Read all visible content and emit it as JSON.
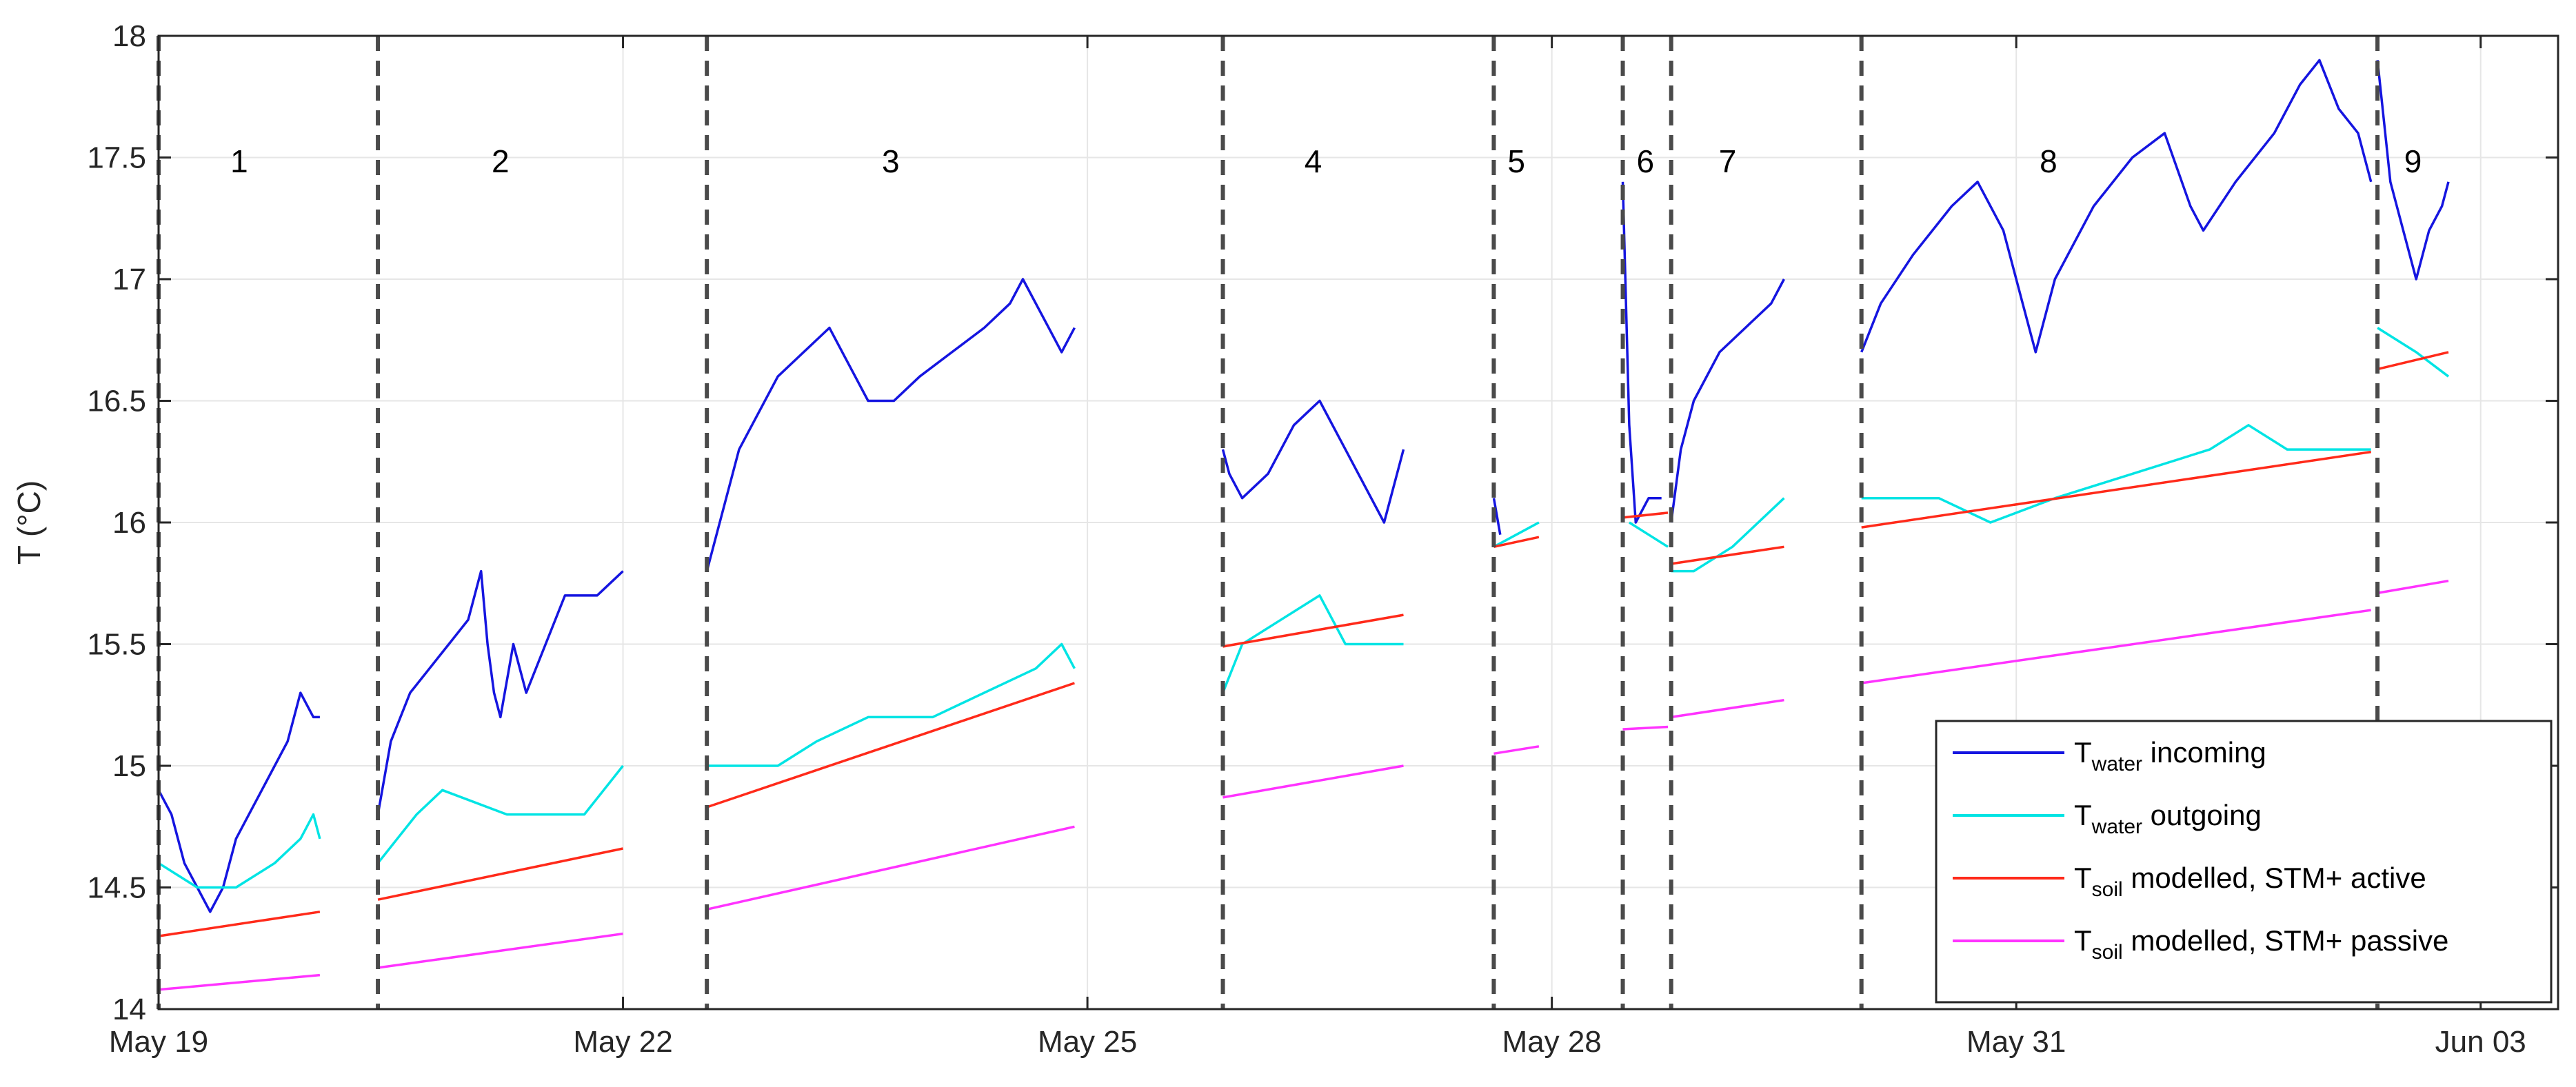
{
  "chart_data": {
    "type": "line",
    "xlabel": "",
    "ylabel": "T (°C)",
    "ylim": [
      14,
      18
    ],
    "xlim": [
      "2021-05-19T00:00",
      "2021-06-03T12:00"
    ],
    "x_ticks": [
      {
        "at": "2021-05-19",
        "label": "May 19"
      },
      {
        "at": "2021-05-22",
        "label": "May 22"
      },
      {
        "at": "2021-05-25",
        "label": "May 25"
      },
      {
        "at": "2021-05-28",
        "label": "May 28"
      },
      {
        "at": "2021-05-31",
        "label": "May 31"
      },
      {
        "at": "2021-06-03",
        "label": "Jun 03"
      }
    ],
    "y_ticks": [
      "14",
      "14.5",
      "15",
      "15.5",
      "16",
      "16.5",
      "17",
      "17.5",
      "18"
    ],
    "grid": true,
    "legend_position": "bottom-right",
    "colors": {
      "incoming": "#1515e0",
      "outgoing": "#00e4e4",
      "active": "#ff2a1a",
      "passive": "#ff33ff",
      "divider": "#4a4a4a"
    },
    "periods": [
      {
        "label": "1",
        "start": "2021-05-19T00:00",
        "end": "2021-05-20T01:00"
      },
      {
        "label": "2",
        "start": "2021-05-20T10:00",
        "end": "2021-05-22T00:00"
      },
      {
        "label": "3",
        "start": "2021-05-22T13:00",
        "end": "2021-05-24T22:00"
      },
      {
        "label": "4",
        "start": "2021-05-25T21:00",
        "end": "2021-05-27T01:00"
      },
      {
        "label": "5",
        "start": "2021-05-27T15:00",
        "end": "2021-05-27T22:00"
      },
      {
        "label": "6",
        "start": "2021-05-28T11:00",
        "end": "2021-05-28T18:00"
      },
      {
        "label": "7",
        "start": "2021-05-28T18:30",
        "end": "2021-05-29T12:00"
      },
      {
        "label": "8",
        "start": "2021-05-30T00:00",
        "end": "2021-06-01T10:00"
      },
      {
        "label": "9",
        "start": "2021-06-02T08:00",
        "end": "2021-06-02T19:00"
      }
    ],
    "series": [
      {
        "name": "T_water incoming",
        "key": "incoming",
        "segments": [
          [
            [
              "2021-05-19T00:00",
              14.9
            ],
            [
              "2021-05-19T02:00",
              14.8
            ],
            [
              "2021-05-19T04:00",
              14.6
            ],
            [
              "2021-05-19T06:00",
              14.5
            ],
            [
              "2021-05-19T08:00",
              14.4
            ],
            [
              "2021-05-19T10:00",
              14.5
            ],
            [
              "2021-05-19T12:00",
              14.7
            ],
            [
              "2021-05-19T14:00",
              14.8
            ],
            [
              "2021-05-19T16:00",
              14.9
            ],
            [
              "2021-05-19T18:00",
              15.0
            ],
            [
              "2021-05-19T20:00",
              15.1
            ],
            [
              "2021-05-19T22:00",
              15.3
            ],
            [
              "2021-05-20T00:00",
              15.2
            ],
            [
              "2021-05-20T01:00",
              15.2
            ]
          ],
          [
            [
              "2021-05-20T10:00",
              14.8
            ],
            [
              "2021-05-20T12:00",
              15.1
            ],
            [
              "2021-05-20T15:00",
              15.3
            ],
            [
              "2021-05-20T18:00",
              15.4
            ],
            [
              "2021-05-20T21:00",
              15.5
            ],
            [
              "2021-05-21T00:00",
              15.6
            ],
            [
              "2021-05-21T02:00",
              15.8
            ],
            [
              "2021-05-21T03:00",
              15.5
            ],
            [
              "2021-05-21T04:00",
              15.3
            ],
            [
              "2021-05-21T05:00",
              15.2
            ],
            [
              "2021-05-21T07:00",
              15.5
            ],
            [
              "2021-05-21T09:00",
              15.3
            ],
            [
              "2021-05-21T12:00",
              15.5
            ],
            [
              "2021-05-21T15:00",
              15.7
            ],
            [
              "2021-05-21T20:00",
              15.7
            ],
            [
              "2021-05-22T00:00",
              15.8
            ]
          ],
          [
            [
              "2021-05-22T13:00",
              15.8
            ],
            [
              "2021-05-22T14:00",
              15.9
            ],
            [
              "2021-05-22T16:00",
              16.1
            ],
            [
              "2021-05-22T18:00",
              16.3
            ],
            [
              "2021-05-22T20:00",
              16.4
            ],
            [
              "2021-05-23T00:00",
              16.6
            ],
            [
              "2021-05-23T04:00",
              16.7
            ],
            [
              "2021-05-23T08:00",
              16.8
            ],
            [
              "2021-05-23T10:00",
              16.7
            ],
            [
              "2021-05-23T12:00",
              16.6
            ],
            [
              "2021-05-23T14:00",
              16.5
            ],
            [
              "2021-05-23T18:00",
              16.5
            ],
            [
              "2021-05-23T22:00",
              16.6
            ],
            [
              "2021-05-24T03:00",
              16.7
            ],
            [
              "2021-05-24T08:00",
              16.8
            ],
            [
              "2021-05-24T12:00",
              16.9
            ],
            [
              "2021-05-24T14:00",
              17.0
            ],
            [
              "2021-05-24T18:00",
              16.8
            ],
            [
              "2021-05-24T20:00",
              16.7
            ],
            [
              "2021-05-24T22:00",
              16.8
            ]
          ],
          [
            [
              "2021-05-25T21:00",
              16.3
            ],
            [
              "2021-05-25T22:00",
              16.2
            ],
            [
              "2021-05-26T00:00",
              16.1
            ],
            [
              "2021-05-26T04:00",
              16.2
            ],
            [
              "2021-05-26T08:00",
              16.4
            ],
            [
              "2021-05-26T12:00",
              16.5
            ],
            [
              "2021-05-26T16:00",
              16.3
            ],
            [
              "2021-05-26T20:00",
              16.1
            ],
            [
              "2021-05-26T22:00",
              16.0
            ],
            [
              "2021-05-27T01:00",
              16.3
            ]
          ],
          [
            [
              "2021-05-27T15:00",
              16.1
            ],
            [
              "2021-05-27T16:00",
              15.95
            ]
          ],
          [
            [
              "2021-05-28T11:00",
              17.4
            ],
            [
              "2021-05-28T12:00",
              16.4
            ],
            [
              "2021-05-28T13:00",
              16.0
            ],
            [
              "2021-05-28T15:00",
              16.1
            ],
            [
              "2021-05-28T17:00",
              16.1
            ]
          ],
          [
            [
              "2021-05-28T18:30",
              16.0
            ],
            [
              "2021-05-28T20:00",
              16.3
            ],
            [
              "2021-05-28T22:00",
              16.5
            ],
            [
              "2021-05-29T02:00",
              16.7
            ],
            [
              "2021-05-29T06:00",
              16.8
            ],
            [
              "2021-05-29T10:00",
              16.9
            ],
            [
              "2021-05-29T12:00",
              17.0
            ]
          ],
          [
            [
              "2021-05-30T00:00",
              16.7
            ],
            [
              "2021-05-30T03:00",
              16.9
            ],
            [
              "2021-05-30T08:00",
              17.1
            ],
            [
              "2021-05-30T14:00",
              17.3
            ],
            [
              "2021-05-30T18:00",
              17.4
            ],
            [
              "2021-05-30T22:00",
              17.2
            ],
            [
              "2021-05-31T01:00",
              16.9
            ],
            [
              "2021-05-31T03:00",
              16.7
            ],
            [
              "2021-05-31T06:00",
              17.0
            ],
            [
              "2021-05-31T12:00",
              17.3
            ],
            [
              "2021-05-31T18:00",
              17.5
            ],
            [
              "2021-05-31T23:00",
              17.6
            ],
            [
              "2021-06-01T03:00",
              17.3
            ],
            [
              "2021-06-01T05:00",
              17.2
            ],
            [
              "2021-06-01T10:00",
              17.4
            ],
            [
              "2021-06-01T16:00",
              17.6
            ],
            [
              "2021-06-01T20:00",
              17.8
            ],
            [
              "2021-06-01T23:00",
              17.9
            ],
            [
              "2021-06-02T02:00",
              17.7
            ],
            [
              "2021-06-02T05:00",
              17.6
            ],
            [
              "2021-06-02T07:00",
              17.4
            ]
          ],
          [
            [
              "2021-06-02T08:00",
              17.9
            ],
            [
              "2021-06-02T10:00",
              17.4
            ],
            [
              "2021-06-02T12:00",
              17.2
            ],
            [
              "2021-06-02T14:00",
              17.0
            ],
            [
              "2021-06-02T16:00",
              17.2
            ],
            [
              "2021-06-02T18:00",
              17.3
            ],
            [
              "2021-06-02T19:00",
              17.4
            ]
          ]
        ]
      },
      {
        "name": "T_water outgoing",
        "key": "outgoing",
        "segments": [
          [
            [
              "2021-05-19T00:00",
              14.6
            ],
            [
              "2021-05-19T06:00",
              14.5
            ],
            [
              "2021-05-19T12:00",
              14.5
            ],
            [
              "2021-05-19T18:00",
              14.6
            ],
            [
              "2021-05-19T22:00",
              14.7
            ],
            [
              "2021-05-20T00:00",
              14.8
            ],
            [
              "2021-05-20T01:00",
              14.7
            ]
          ],
          [
            [
              "2021-05-20T10:00",
              14.6
            ],
            [
              "2021-05-20T13:00",
              14.7
            ],
            [
              "2021-05-20T16:00",
              14.8
            ],
            [
              "2021-05-20T20:00",
              14.9
            ],
            [
              "2021-05-21T06:00",
              14.8
            ],
            [
              "2021-05-21T18:00",
              14.8
            ],
            [
              "2021-05-21T21:00",
              14.9
            ],
            [
              "2021-05-22T00:00",
              15.0
            ]
          ],
          [
            [
              "2021-05-22T13:00",
              15.0
            ],
            [
              "2021-05-23T00:00",
              15.0
            ],
            [
              "2021-05-23T06:00",
              15.1
            ],
            [
              "2021-05-23T14:00",
              15.2
            ],
            [
              "2021-05-24T00:00",
              15.2
            ],
            [
              "2021-05-24T08:00",
              15.3
            ],
            [
              "2021-05-24T16:00",
              15.4
            ],
            [
              "2021-05-24T20:00",
              15.5
            ],
            [
              "2021-05-24T22:00",
              15.4
            ]
          ],
          [
            [
              "2021-05-25T21:00",
              15.3
            ],
            [
              "2021-05-26T00:00",
              15.5
            ],
            [
              "2021-05-26T06:00",
              15.6
            ],
            [
              "2021-05-26T12:00",
              15.7
            ],
            [
              "2021-05-26T16:00",
              15.5
            ],
            [
              "2021-05-27T01:00",
              15.5
            ]
          ],
          [
            [
              "2021-05-27T15:00",
              15.9
            ],
            [
              "2021-05-27T22:00",
              16.0
            ]
          ],
          [
            [
              "2021-05-28T12:00",
              16.0
            ],
            [
              "2021-05-28T15:00",
              15.95
            ],
            [
              "2021-05-28T18:00",
              15.9
            ]
          ],
          [
            [
              "2021-05-28T18:30",
              15.8
            ],
            [
              "2021-05-28T22:00",
              15.8
            ],
            [
              "2021-05-29T04:00",
              15.9
            ],
            [
              "2021-05-29T08:00",
              16.0
            ],
            [
              "2021-05-29T12:00",
              16.1
            ]
          ],
          [
            [
              "2021-05-30T00:00",
              16.1
            ],
            [
              "2021-05-30T12:00",
              16.1
            ],
            [
              "2021-05-30T20:00",
              16.0
            ],
            [
              "2021-05-31T06:00",
              16.1
            ],
            [
              "2021-05-31T18:00",
              16.2
            ],
            [
              "2021-06-01T06:00",
              16.3
            ],
            [
              "2021-06-01T12:00",
              16.4
            ],
            [
              "2021-06-01T18:00",
              16.3
            ],
            [
              "2021-06-02T07:00",
              16.3
            ]
          ],
          [
            [
              "2021-06-02T08:00",
              16.8
            ],
            [
              "2021-06-02T14:00",
              16.7
            ],
            [
              "2021-06-02T19:00",
              16.6
            ]
          ]
        ]
      },
      {
        "name": "T_soil modelled, STM+ active",
        "key": "active",
        "segments": [
          [
            [
              "2021-05-19T00:00",
              14.3
            ],
            [
              "2021-05-20T01:00",
              14.4
            ]
          ],
          [
            [
              "2021-05-20T10:00",
              14.45
            ],
            [
              "2021-05-22T00:00",
              14.66
            ]
          ],
          [
            [
              "2021-05-22T13:00",
              14.83
            ],
            [
              "2021-05-24T22:00",
              15.34
            ]
          ],
          [
            [
              "2021-05-25T21:00",
              15.49
            ],
            [
              "2021-05-27T01:00",
              15.62
            ]
          ],
          [
            [
              "2021-05-27T15:00",
              15.9
            ],
            [
              "2021-05-27T22:00",
              15.94
            ]
          ],
          [
            [
              "2021-05-28T11:00",
              16.02
            ],
            [
              "2021-05-28T18:00",
              16.04
            ]
          ],
          [
            [
              "2021-05-28T18:30",
              15.83
            ],
            [
              "2021-05-29T12:00",
              15.9
            ]
          ],
          [
            [
              "2021-05-30T00:00",
              15.98
            ],
            [
              "2021-06-02T07:00",
              16.29
            ]
          ],
          [
            [
              "2021-06-02T08:00",
              16.63
            ],
            [
              "2021-06-02T19:00",
              16.7
            ]
          ]
        ]
      },
      {
        "name": "T_soil modelled, STM+ passive",
        "key": "passive",
        "segments": [
          [
            [
              "2021-05-19T00:00",
              14.08
            ],
            [
              "2021-05-20T01:00",
              14.14
            ]
          ],
          [
            [
              "2021-05-20T10:00",
              14.17
            ],
            [
              "2021-05-22T00:00",
              14.31
            ]
          ],
          [
            [
              "2021-05-22T13:00",
              14.41
            ],
            [
              "2021-05-24T22:00",
              14.75
            ]
          ],
          [
            [
              "2021-05-25T21:00",
              14.87
            ],
            [
              "2021-05-27T01:00",
              15.0
            ]
          ],
          [
            [
              "2021-05-27T15:00",
              15.05
            ],
            [
              "2021-05-27T22:00",
              15.08
            ]
          ],
          [
            [
              "2021-05-28T11:00",
              15.15
            ],
            [
              "2021-05-28T18:00",
              15.16
            ]
          ],
          [
            [
              "2021-05-28T18:30",
              15.2
            ],
            [
              "2021-05-29T12:00",
              15.27
            ]
          ],
          [
            [
              "2021-05-30T00:00",
              15.34
            ],
            [
              "2021-06-02T07:00",
              15.64
            ]
          ],
          [
            [
              "2021-06-02T08:00",
              15.71
            ],
            [
              "2021-06-02T19:00",
              15.76
            ]
          ]
        ]
      }
    ],
    "legend": [
      {
        "key": "incoming",
        "main": "T",
        "sub": "water",
        "rest": " incoming"
      },
      {
        "key": "outgoing",
        "main": "T",
        "sub": "water",
        "rest": " outgoing"
      },
      {
        "key": "active",
        "main": "T",
        "sub": "soil",
        "rest": " modelled, STM+ active"
      },
      {
        "key": "passive",
        "main": "T",
        "sub": "soil",
        "rest": " modelled, STM+ passive"
      }
    ]
  }
}
